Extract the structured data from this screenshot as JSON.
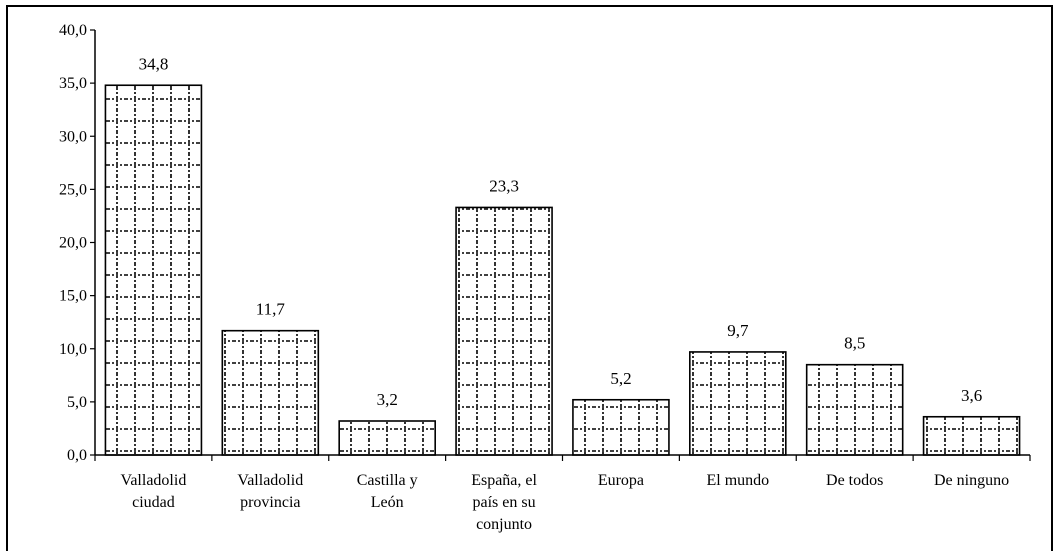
{
  "chart_data": {
    "type": "bar",
    "title": "",
    "xlabel": "",
    "ylabel": "",
    "ylim": [
      0,
      40
    ],
    "ytick_step": 5,
    "yticks": [
      "0,0",
      "5,0",
      "10,0",
      "15,0",
      "20,0",
      "25,0",
      "30,0",
      "35,0",
      "40,0"
    ],
    "categories": [
      [
        "Valladolid",
        "ciudad"
      ],
      [
        "Valladolid",
        "provincia"
      ],
      [
        "Castilla y",
        "León"
      ],
      [
        "España, el",
        "país en su",
        "conjunto"
      ],
      [
        "Europa"
      ],
      [
        "El mundo"
      ],
      [
        "De todos"
      ],
      [
        "De ninguno"
      ]
    ],
    "values": [
      34.8,
      11.7,
      3.2,
      23.3,
      5.2,
      9.7,
      8.5,
      3.6
    ],
    "value_labels": [
      "34,8",
      "11,7",
      "3,2",
      "23,3",
      "5,2",
      "9,7",
      "8,5",
      "3,6"
    ],
    "grid": false,
    "legend": "none",
    "bar_fill": "dotted-grid",
    "colors": {
      "bar_stroke": "#000000",
      "bar_fill": "#ffffff",
      "pattern": "#000000"
    }
  }
}
